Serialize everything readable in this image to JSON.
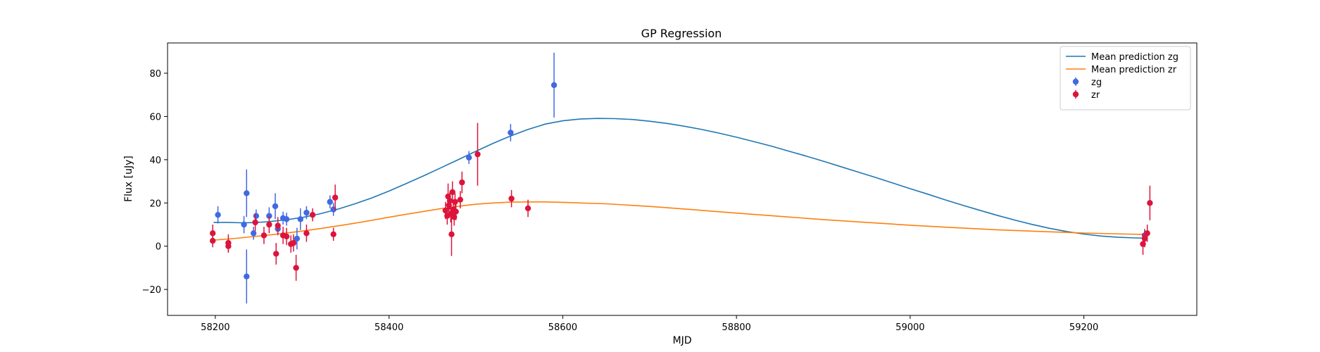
{
  "colors": {
    "zg_line": "#1f77b4",
    "zr_line": "#ff7f0e",
    "zg_points": "#4169e1",
    "zr_points": "#dc143c"
  },
  "chart_data": {
    "type": "scatter",
    "title": "GP Regression",
    "xlabel": "MJD",
    "ylabel": "Flux [uJy]",
    "xlim": [
      58145,
      59330
    ],
    "ylim": [
      -32,
      94
    ],
    "x_ticks": [
      58200,
      58400,
      58600,
      58800,
      59000,
      59200
    ],
    "y_ticks": [
      -20,
      0,
      20,
      40,
      60,
      80
    ],
    "x_tick_labels": [
      "58200",
      "58400",
      "58600",
      "58800",
      "59000",
      "59200"
    ],
    "y_tick_labels": [
      "−20",
      "0",
      "20",
      "40",
      "60",
      "80"
    ],
    "legend_position": "top-right",
    "legend": [
      {
        "label": "Mean prediction zg",
        "kind": "line",
        "series": "zg"
      },
      {
        "label": "Mean prediction zr",
        "kind": "line",
        "series": "zr"
      },
      {
        "label": "zg",
        "kind": "errorbar",
        "series": "zg"
      },
      {
        "label": "zr",
        "kind": "errorbar",
        "series": "zr"
      }
    ],
    "lines": [
      {
        "series": "zg",
        "points": [
          [
            58198,
            11
          ],
          [
            58215,
            11
          ],
          [
            58230,
            10.8
          ],
          [
            58245,
            10.9
          ],
          [
            58260,
            11.3
          ],
          [
            58280,
            12.1
          ],
          [
            58300,
            13.3
          ],
          [
            58320,
            14.9
          ],
          [
            58340,
            17
          ],
          [
            58360,
            19.5
          ],
          [
            58380,
            22.3
          ],
          [
            58400,
            25.5
          ],
          [
            58420,
            29
          ],
          [
            58440,
            32.6
          ],
          [
            58460,
            36.3
          ],
          [
            58480,
            40.1
          ],
          [
            58500,
            43.9
          ],
          [
            58520,
            47.6
          ],
          [
            58540,
            51
          ],
          [
            58560,
            54
          ],
          [
            58580,
            56.5
          ],
          [
            58600,
            58
          ],
          [
            58620,
            58.8
          ],
          [
            58640,
            59.1
          ],
          [
            58660,
            59
          ],
          [
            58680,
            58.6
          ],
          [
            58700,
            57.8
          ],
          [
            58720,
            56.8
          ],
          [
            58740,
            55.5
          ],
          [
            58760,
            54
          ],
          [
            58780,
            52.3
          ],
          [
            58800,
            50.4
          ],
          [
            58820,
            48.4
          ],
          [
            58840,
            46.3
          ],
          [
            58860,
            44
          ],
          [
            58880,
            41.7
          ],
          [
            58900,
            39.3
          ],
          [
            58920,
            36.8
          ],
          [
            58940,
            34.3
          ],
          [
            58960,
            31.8
          ],
          [
            58980,
            29.2
          ],
          [
            59000,
            26.6
          ],
          [
            59020,
            24.1
          ],
          [
            59040,
            21.5
          ],
          [
            59060,
            19
          ],
          [
            59080,
            16.6
          ],
          [
            59100,
            14.3
          ],
          [
            59120,
            12.1
          ],
          [
            59140,
            10.1
          ],
          [
            59160,
            8.3
          ],
          [
            59180,
            6.8
          ],
          [
            59200,
            5.6
          ],
          [
            59220,
            4.7
          ],
          [
            59240,
            4.1
          ],
          [
            59260,
            3.8
          ],
          [
            59270,
            3.7
          ]
        ]
      },
      {
        "series": "zr",
        "points": [
          [
            58198,
            2.8
          ],
          [
            58220,
            3.5
          ],
          [
            58240,
            4.3
          ],
          [
            58260,
            5.1
          ],
          [
            58280,
            6
          ],
          [
            58300,
            7
          ],
          [
            58320,
            8.1
          ],
          [
            58340,
            9.3
          ],
          [
            58360,
            10.6
          ],
          [
            58380,
            12
          ],
          [
            58400,
            13.4
          ],
          [
            58420,
            14.8
          ],
          [
            58440,
            16.1
          ],
          [
            58460,
            17.4
          ],
          [
            58480,
            18.5
          ],
          [
            58500,
            19.4
          ],
          [
            58520,
            20
          ],
          [
            58540,
            20.4
          ],
          [
            58560,
            20.5
          ],
          [
            58580,
            20.5
          ],
          [
            58600,
            20.3
          ],
          [
            58650,
            19.6
          ],
          [
            58700,
            18.4
          ],
          [
            58750,
            16.9
          ],
          [
            58800,
            15.3
          ],
          [
            58850,
            13.8
          ],
          [
            58900,
            12.3
          ],
          [
            58950,
            11
          ],
          [
            59000,
            9.7
          ],
          [
            59050,
            8.6
          ],
          [
            59100,
            7.6
          ],
          [
            59150,
            6.8
          ],
          [
            59200,
            6.1
          ],
          [
            59250,
            5.6
          ],
          [
            59275,
            5.4
          ]
        ]
      }
    ],
    "scatter": [
      {
        "series": "zg",
        "points": [
          {
            "x": 58203,
            "y": 14.5,
            "err": 4
          },
          {
            "x": 58233,
            "y": 10,
            "err": 4
          },
          {
            "x": 58236,
            "y": 24.5,
            "err": 11
          },
          {
            "x": 58236,
            "y": -14,
            "err": 12.5
          },
          {
            "x": 58244,
            "y": 6,
            "err": 3
          },
          {
            "x": 58247,
            "y": 14,
            "err": 3
          },
          {
            "x": 58262,
            "y": 14,
            "err": 4
          },
          {
            "x": 58269,
            "y": 18.5,
            "err": 6
          },
          {
            "x": 58272,
            "y": 8,
            "err": 3
          },
          {
            "x": 58278,
            "y": 13,
            "err": 3
          },
          {
            "x": 58282,
            "y": 12.5,
            "err": 3
          },
          {
            "x": 58294,
            "y": 3.5,
            "err": 5
          },
          {
            "x": 58298,
            "y": 12.5,
            "err": 5
          },
          {
            "x": 58305,
            "y": 15.5,
            "err": 3
          },
          {
            "x": 58332,
            "y": 20.5,
            "err": 3
          },
          {
            "x": 58336,
            "y": 17,
            "err": 3
          },
          {
            "x": 58492,
            "y": 41,
            "err": 3
          },
          {
            "x": 58540,
            "y": 52.5,
            "err": 4
          },
          {
            "x": 58590,
            "y": 74.5,
            "err": 15
          },
          {
            "x": 59270,
            "y": 5,
            "err": 3
          }
        ]
      },
      {
        "series": "zr",
        "points": [
          {
            "x": 58197,
            "y": 6,
            "err": 4
          },
          {
            "x": 58197,
            "y": 2.5,
            "err": 3
          },
          {
            "x": 58215,
            "y": 1.5,
            "err": 4
          },
          {
            "x": 58215,
            "y": 0,
            "err": 3
          },
          {
            "x": 58246,
            "y": 11,
            "err": 4
          },
          {
            "x": 58256,
            "y": 5,
            "err": 4
          },
          {
            "x": 58262,
            "y": 10,
            "err": 4
          },
          {
            "x": 58270,
            "y": -3.5,
            "err": 5
          },
          {
            "x": 58272,
            "y": 9.5,
            "err": 4
          },
          {
            "x": 58278,
            "y": 5,
            "err": 4
          },
          {
            "x": 58282,
            "y": 4.5,
            "err": 4
          },
          {
            "x": 58287,
            "y": 1,
            "err": 4
          },
          {
            "x": 58290,
            "y": 1.5,
            "err": 4
          },
          {
            "x": 58293,
            "y": -10,
            "err": 6
          },
          {
            "x": 58305,
            "y": 6,
            "err": 4
          },
          {
            "x": 58312,
            "y": 14.5,
            "err": 3
          },
          {
            "x": 58336,
            "y": 5.5,
            "err": 3
          },
          {
            "x": 58338,
            "y": 22.5,
            "err": 6
          },
          {
            "x": 58465,
            "y": 16.5,
            "err": 4
          },
          {
            "x": 58467,
            "y": 14,
            "err": 4
          },
          {
            "x": 58468,
            "y": 23,
            "err": 6
          },
          {
            "x": 58469,
            "y": 19,
            "err": 4
          },
          {
            "x": 58470,
            "y": 21,
            "err": 4
          },
          {
            "x": 58471,
            "y": 15,
            "err": 4
          },
          {
            "x": 58472,
            "y": 5.5,
            "err": 10
          },
          {
            "x": 58473,
            "y": 25,
            "err": 5
          },
          {
            "x": 58474,
            "y": 17,
            "err": 4
          },
          {
            "x": 58475,
            "y": 13.5,
            "err": 4
          },
          {
            "x": 58476,
            "y": 20.5,
            "err": 4
          },
          {
            "x": 58477,
            "y": 16,
            "err": 4
          },
          {
            "x": 58482,
            "y": 21.5,
            "err": 4
          },
          {
            "x": 58484,
            "y": 29.5,
            "err": 5
          },
          {
            "x": 58502,
            "y": 42.5,
            "err": 14.5
          },
          {
            "x": 58541,
            "y": 22,
            "err": 4
          },
          {
            "x": 58560,
            "y": 17.5,
            "err": 4
          },
          {
            "x": 59268,
            "y": 1,
            "err": 5
          },
          {
            "x": 59270,
            "y": 3.5,
            "err": 4
          },
          {
            "x": 59273,
            "y": 6,
            "err": 4
          },
          {
            "x": 59276,
            "y": 20,
            "err": 8
          }
        ]
      }
    ]
  }
}
